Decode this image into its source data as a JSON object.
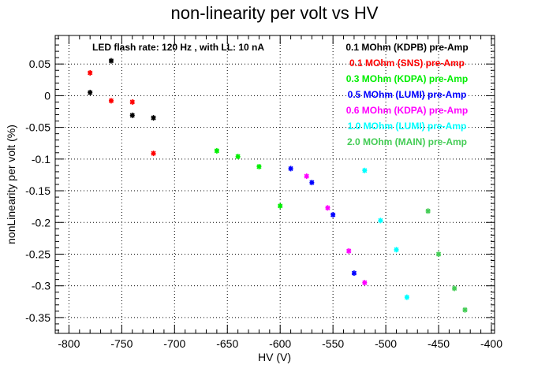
{
  "chart_data": {
    "type": "scatter",
    "title": "non-linearity per volt vs HV",
    "xlabel": "HV (V)",
    "ylabel": "nonLinearity per volt (%)",
    "xlim": [
      -813,
      -397
    ],
    "ylim": [
      -0.375,
      0.095
    ],
    "x_ticks": [
      -800,
      -750,
      -700,
      -650,
      -600,
      -550,
      -500,
      -450,
      -400
    ],
    "y_ticks": [
      0.05,
      0,
      -0.05,
      -0.1,
      -0.15,
      -0.2,
      -0.25,
      -0.3,
      -0.35
    ],
    "grid": true,
    "annotation": "LED flash rate: 120 Hz , with LL: 10 nA",
    "legend_position": "top-right",
    "series": [
      {
        "name": "0.1 MOhm (KDPB) pre-Amp",
        "color": "#000000",
        "points": [
          [
            -760,
            0.055
          ],
          [
            -780,
            0.005
          ],
          [
            -740,
            -0.031
          ],
          [
            -720,
            -0.035
          ]
        ]
      },
      {
        "name": "0.1 MOhm (SNS) pre-Amp",
        "color": "#ff0000",
        "points": [
          [
            -780,
            0.036
          ],
          [
            -760,
            -0.008
          ],
          [
            -740,
            -0.01
          ],
          [
            -720,
            -0.091
          ]
        ]
      },
      {
        "name": "0.3 MOhm (KDPA) pre-Amp",
        "color": "#00ee00",
        "points": [
          [
            -660,
            -0.087
          ],
          [
            -640,
            -0.096
          ],
          [
            -620,
            -0.112
          ],
          [
            -600,
            -0.174
          ]
        ]
      },
      {
        "name": "0.5 MOhm (LUMI) pre-Amp",
        "color": "#0000ff",
        "points": [
          [
            -590,
            -0.115
          ],
          [
            -570,
            -0.137
          ],
          [
            -550,
            -0.188
          ],
          [
            -530,
            -0.28
          ]
        ]
      },
      {
        "name": "0.6 MOhm (KDPA) pre-Amp",
        "color": "#ff00ff",
        "points": [
          [
            -575,
            -0.127
          ],
          [
            -555,
            -0.177
          ],
          [
            -535,
            -0.245
          ],
          [
            -520,
            -0.295
          ]
        ]
      },
      {
        "name": "1.0 MOhm (LUMI) pre-Amp",
        "color": "#00ffff",
        "points": [
          [
            -520,
            -0.118
          ],
          [
            -505,
            -0.197
          ],
          [
            -490,
            -0.243
          ],
          [
            -480,
            -0.318
          ]
        ]
      },
      {
        "name": "2.0 MOhm (MAIN) pre-Amp",
        "color": "#44cc55",
        "points": [
          [
            -460,
            -0.182
          ],
          [
            -450,
            -0.25
          ],
          [
            -435,
            -0.304
          ],
          [
            -425,
            -0.338
          ]
        ]
      }
    ]
  }
}
